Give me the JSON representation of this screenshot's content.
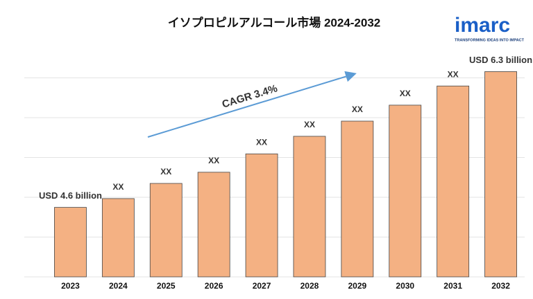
{
  "chart_data": {
    "type": "bar",
    "title": "イソプロピルアルコール市場 2024-2032",
    "annotation": "CAGR 3.4%",
    "categories": [
      "2023",
      "2024",
      "2025",
      "2026",
      "2027",
      "2028",
      "2029",
      "2030",
      "2031",
      "2032"
    ],
    "values": [
      4.6,
      4.71,
      4.9,
      5.04,
      5.27,
      5.49,
      5.68,
      5.88,
      6.12,
      6.3
    ],
    "value_labels": [
      "USD 4.6 billion",
      "XX",
      "XX",
      "XX",
      "XX",
      "XX",
      "XX",
      "XX",
      "XX",
      "USD 6.3 billion"
    ],
    "color": "#f4b183",
    "ylim": [
      3.73,
      6.33
    ],
    "grid": true
  },
  "logo": {
    "name": "imarc",
    "tagline": "TRANSFORMING IDEAS INTO IMPACT"
  }
}
